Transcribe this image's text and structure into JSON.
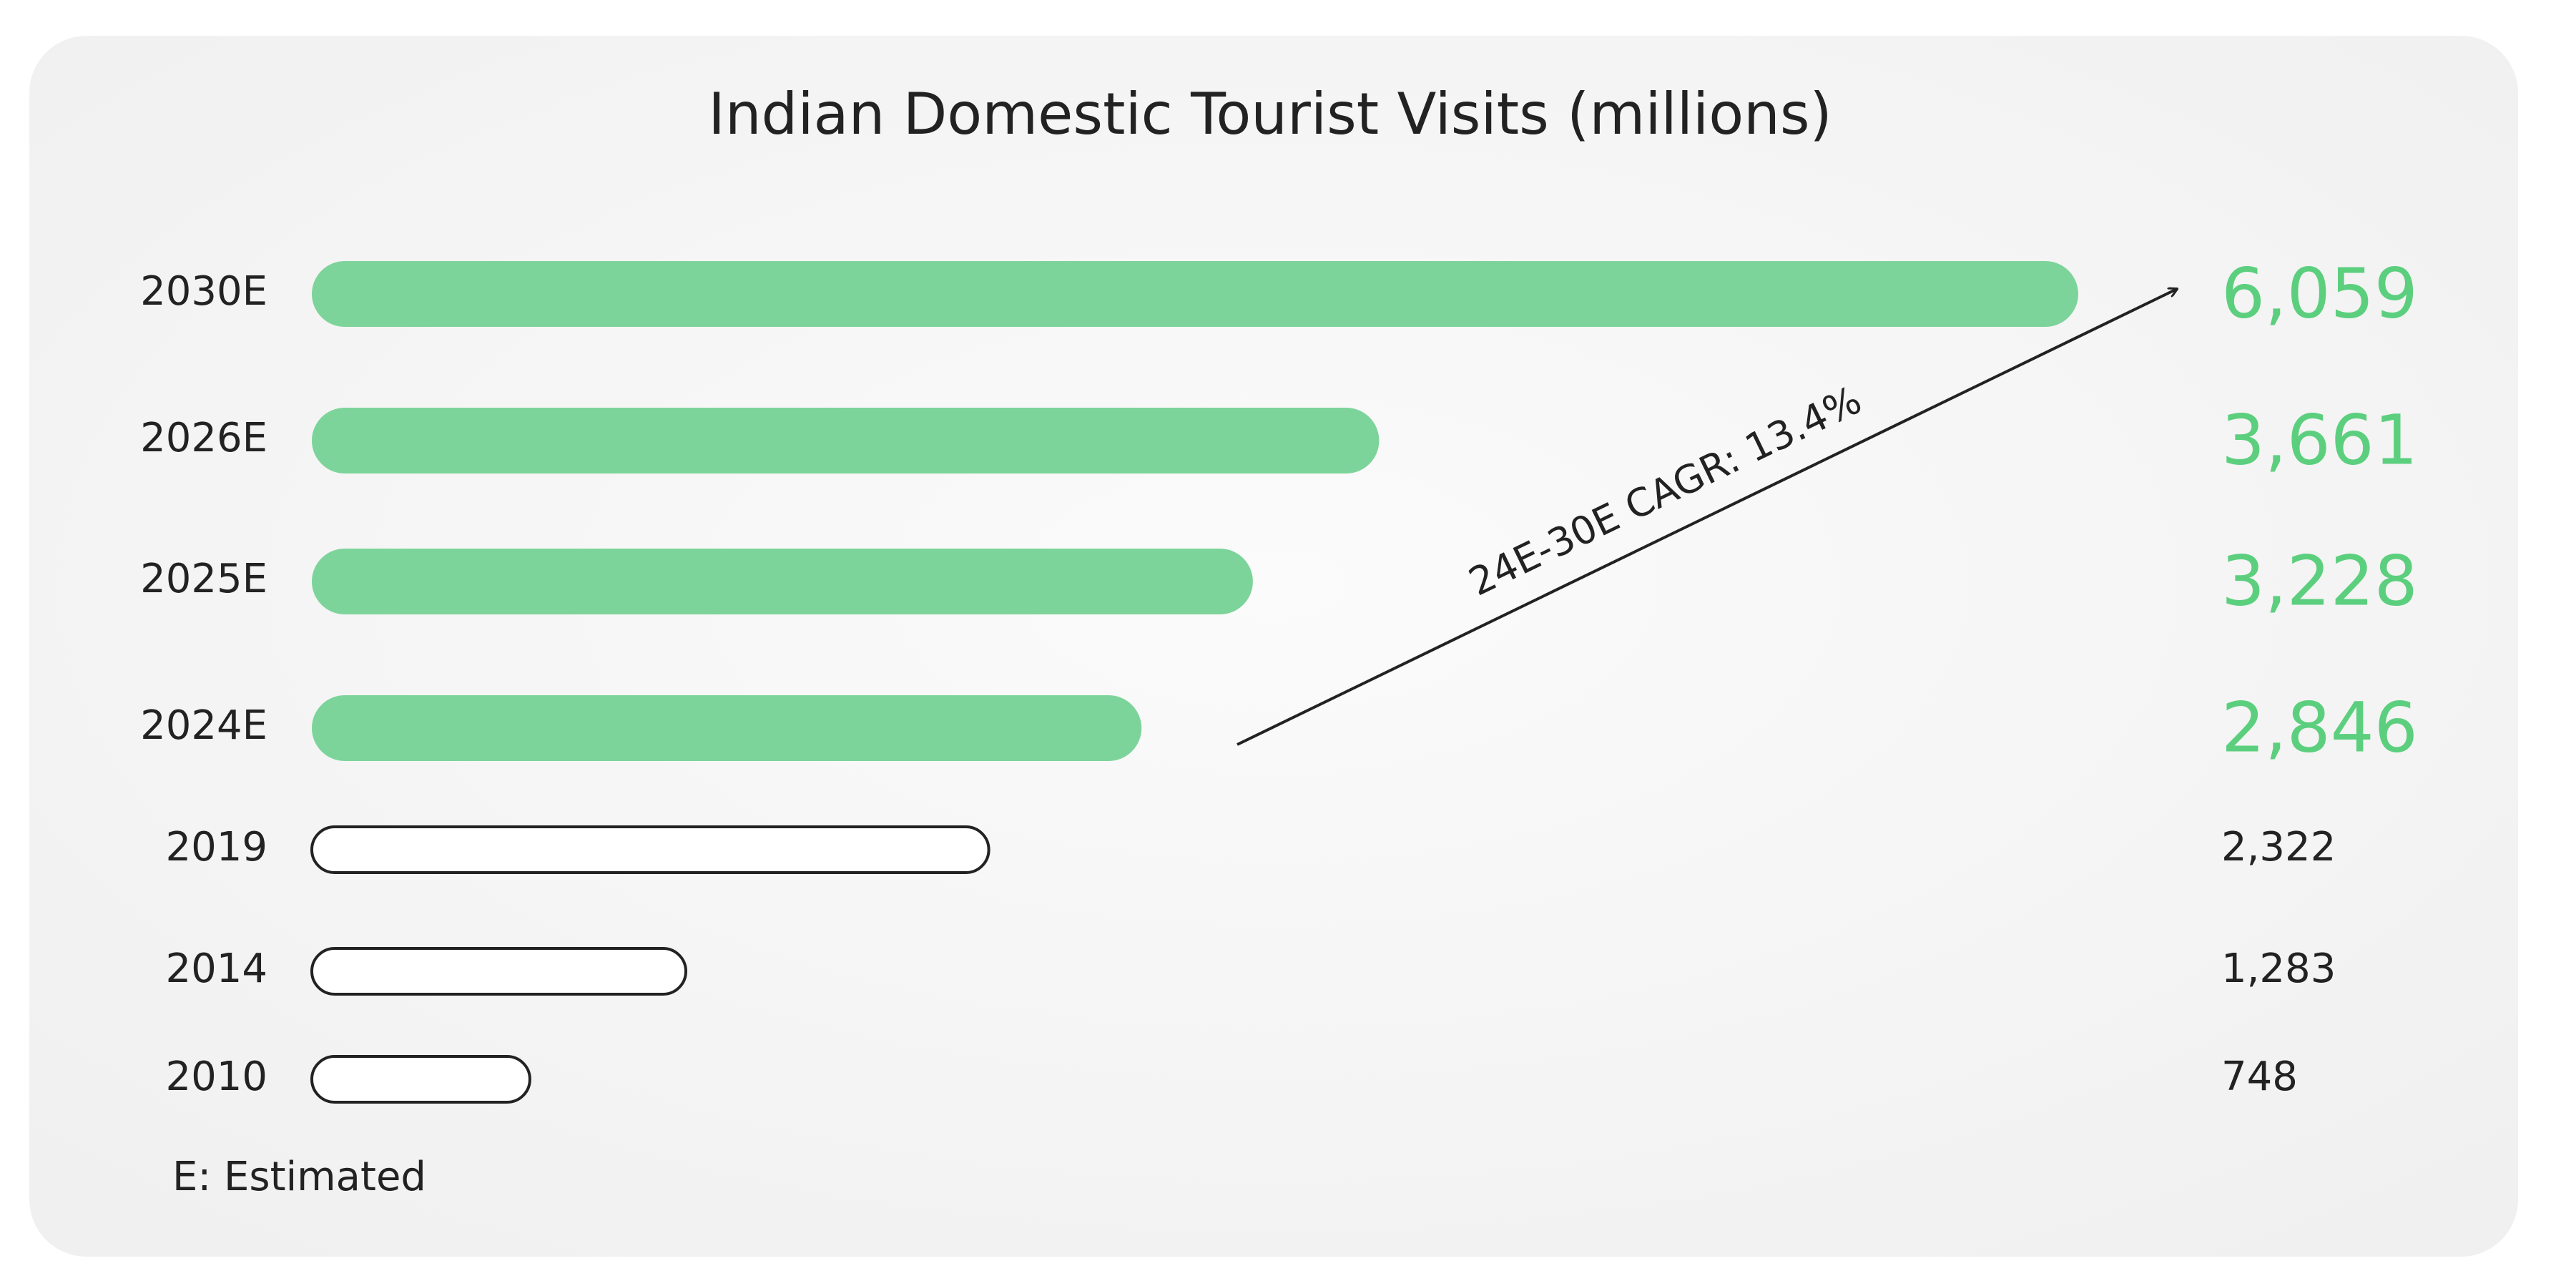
{
  "chart_data": {
    "type": "bar",
    "orientation": "horizontal",
    "title": "Indian Domestic Tourist Visits (millions)",
    "categories": [
      "2030E",
      "2026E",
      "2025E",
      "2024E",
      "2019",
      "2014",
      "2010"
    ],
    "values": [
      6059,
      3661,
      3228,
      2846,
      2322,
      1283,
      748
    ],
    "value_labels": [
      "6,059",
      "3,661",
      "3,228",
      "2,846",
      "2,322",
      "1,283",
      "748"
    ],
    "colors": [
      "#7dd49a",
      "#7dd49a",
      "#7dd49a",
      "#7dd49a",
      "#ffffff",
      "#ffffff",
      "#ffffff"
    ],
    "annotation": "24E-30E CAGR: 13.4%",
    "footnote": "E: Estimated"
  }
}
